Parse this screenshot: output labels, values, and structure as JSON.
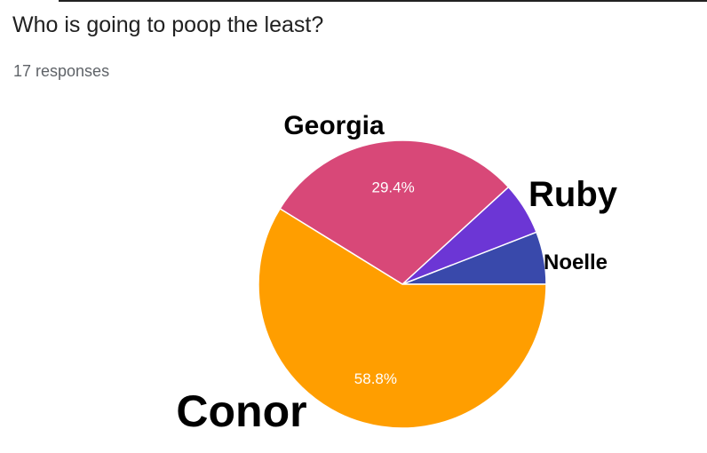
{
  "header": {
    "question": "Who is going to poop the least?",
    "responses_count": "17 responses"
  },
  "chart_data": {
    "type": "pie",
    "total_responses": 17,
    "slices": [
      {
        "name": "Noelle",
        "percent": 5.9,
        "count": 1,
        "color": "#3949ab",
        "percent_label": ""
      },
      {
        "name": "Ruby",
        "percent": 5.9,
        "count": 1,
        "color": "#6c36d5",
        "percent_label": ""
      },
      {
        "name": "Georgia",
        "percent": 29.4,
        "count": 5,
        "color": "#d84878",
        "percent_label": "29.4%"
      },
      {
        "name": "Conor",
        "percent": 58.8,
        "count": 10,
        "color": "#ff9e00",
        "percent_label": "58.8%"
      }
    ]
  }
}
